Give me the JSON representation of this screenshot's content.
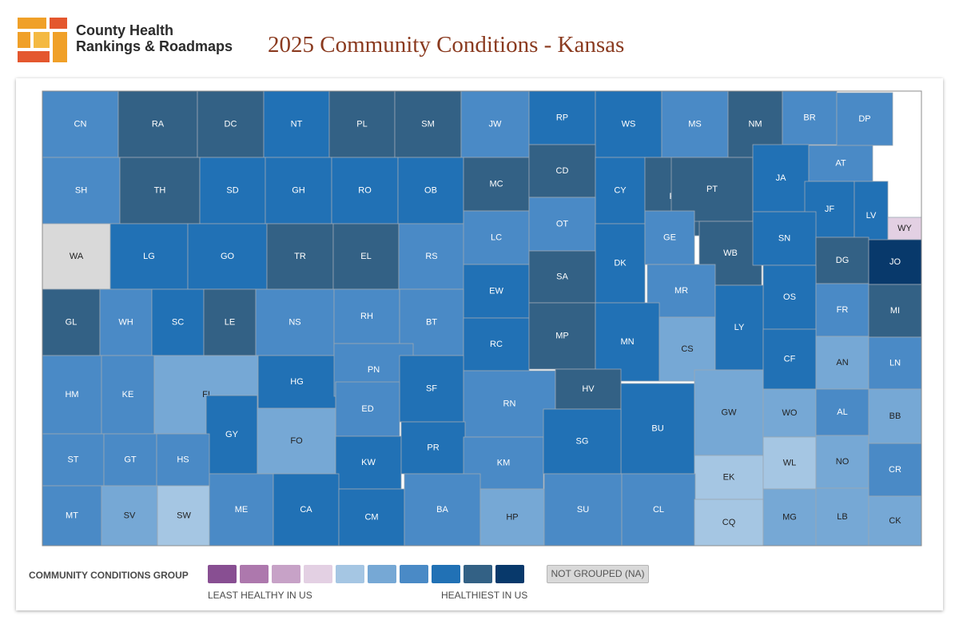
{
  "header": {
    "brand_line1": "County Health",
    "brand_line2": "Rankings & Roadmaps",
    "title": "2025 Community Conditions - Kansas"
  },
  "palette": {
    "na": "#d9d9d9",
    "g1": "#884f92",
    "g2": "#ad78ad",
    "g3": "#c7a2c7",
    "g4": "#e3d0e3",
    "g5": "#a5c6e3",
    "g6": "#76a8d5",
    "g7": "#4a8ac6",
    "g8": "#2171b5",
    "g9": "#336185",
    "g10": "#08396b"
  },
  "legend": {
    "title": "COMMUNITY CONDITIONS GROUP",
    "least_label": "LEAST HEALTHY IN US",
    "healthiest_label": "HEALTHIEST IN US",
    "na_label": "NOT GROUPED (NA)",
    "groups": [
      "g1",
      "g2",
      "g3",
      "g4",
      "g5",
      "g6",
      "g7",
      "g8",
      "g9",
      "g10"
    ]
  },
  "state": "Kansas",
  "counties": [
    {
      "code": "CN",
      "group": "g7"
    },
    {
      "code": "RA",
      "group": "g9"
    },
    {
      "code": "DC",
      "group": "g9"
    },
    {
      "code": "NT",
      "group": "g8"
    },
    {
      "code": "PL",
      "group": "g9"
    },
    {
      "code": "SM",
      "group": "g9"
    },
    {
      "code": "JW",
      "group": "g7"
    },
    {
      "code": "RP",
      "group": "g8"
    },
    {
      "code": "WS",
      "group": "g8"
    },
    {
      "code": "MS",
      "group": "g7"
    },
    {
      "code": "NM",
      "group": "g9"
    },
    {
      "code": "BR",
      "group": "g7"
    },
    {
      "code": "DP",
      "group": "g7"
    },
    {
      "code": "SH",
      "group": "g7"
    },
    {
      "code": "TH",
      "group": "g9"
    },
    {
      "code": "SD",
      "group": "g8"
    },
    {
      "code": "GH",
      "group": "g8"
    },
    {
      "code": "RO",
      "group": "g8"
    },
    {
      "code": "OB",
      "group": "g8"
    },
    {
      "code": "MC",
      "group": "g9"
    },
    {
      "code": "CD",
      "group": "g9"
    },
    {
      "code": "CY",
      "group": "g8"
    },
    {
      "code": "RL",
      "group": "g9"
    },
    {
      "code": "PT",
      "group": "g9"
    },
    {
      "code": "JA",
      "group": "g8"
    },
    {
      "code": "AT",
      "group": "g7"
    },
    {
      "code": "JF",
      "group": "g8"
    },
    {
      "code": "LV",
      "group": "g8"
    },
    {
      "code": "WY",
      "group": "g4"
    },
    {
      "code": "WA",
      "group": "na"
    },
    {
      "code": "LG",
      "group": "g8"
    },
    {
      "code": "GO",
      "group": "g8"
    },
    {
      "code": "TR",
      "group": "g9"
    },
    {
      "code": "EL",
      "group": "g9"
    },
    {
      "code": "RS",
      "group": "g7"
    },
    {
      "code": "LC",
      "group": "g7"
    },
    {
      "code": "OT",
      "group": "g7"
    },
    {
      "code": "DK",
      "group": "g8"
    },
    {
      "code": "GE",
      "group": "g7"
    },
    {
      "code": "WB",
      "group": "g9"
    },
    {
      "code": "SN",
      "group": "g8"
    },
    {
      "code": "DG",
      "group": "g9"
    },
    {
      "code": "JO",
      "group": "g10"
    },
    {
      "code": "EW",
      "group": "g8"
    },
    {
      "code": "SA",
      "group": "g9"
    },
    {
      "code": "MR",
      "group": "g7"
    },
    {
      "code": "OS",
      "group": "g8"
    },
    {
      "code": "GL",
      "group": "g9"
    },
    {
      "code": "WH",
      "group": "g7"
    },
    {
      "code": "SC",
      "group": "g8"
    },
    {
      "code": "LE",
      "group": "g9"
    },
    {
      "code": "NS",
      "group": "g7"
    },
    {
      "code": "RH",
      "group": "g7"
    },
    {
      "code": "BT",
      "group": "g7"
    },
    {
      "code": "RC",
      "group": "g8"
    },
    {
      "code": "MP",
      "group": "g9"
    },
    {
      "code": "MN",
      "group": "g8"
    },
    {
      "code": "CS",
      "group": "g6"
    },
    {
      "code": "LY",
      "group": "g8"
    },
    {
      "code": "FR",
      "group": "g7"
    },
    {
      "code": "MI",
      "group": "g9"
    },
    {
      "code": "HM",
      "group": "g7"
    },
    {
      "code": "KE",
      "group": "g7"
    },
    {
      "code": "FI",
      "group": "g6"
    },
    {
      "code": "HG",
      "group": "g8"
    },
    {
      "code": "PN",
      "group": "g7"
    },
    {
      "code": "SF",
      "group": "g8"
    },
    {
      "code": "RN",
      "group": "g7"
    },
    {
      "code": "HV",
      "group": "g9"
    },
    {
      "code": "CF",
      "group": "g8"
    },
    {
      "code": "AN",
      "group": "g6"
    },
    {
      "code": "LN",
      "group": "g7"
    },
    {
      "code": "GY",
      "group": "g8"
    },
    {
      "code": "ED",
      "group": "g7"
    },
    {
      "code": "BU",
      "group": "g8"
    },
    {
      "code": "GW",
      "group": "g6"
    },
    {
      "code": "WO",
      "group": "g6"
    },
    {
      "code": "AL",
      "group": "g7"
    },
    {
      "code": "BB",
      "group": "g6"
    },
    {
      "code": "ST",
      "group": "g7"
    },
    {
      "code": "GT",
      "group": "g7"
    },
    {
      "code": "HS",
      "group": "g7"
    },
    {
      "code": "FO",
      "group": "g6"
    },
    {
      "code": "KW",
      "group": "g8"
    },
    {
      "code": "PR",
      "group": "g8"
    },
    {
      "code": "KM",
      "group": "g7"
    },
    {
      "code": "SG",
      "group": "g8"
    },
    {
      "code": "EK",
      "group": "g5"
    },
    {
      "code": "WL",
      "group": "g5"
    },
    {
      "code": "NO",
      "group": "g6"
    },
    {
      "code": "CR",
      "group": "g7"
    },
    {
      "code": "MT",
      "group": "g7"
    },
    {
      "code": "SV",
      "group": "g6"
    },
    {
      "code": "SW",
      "group": "g5"
    },
    {
      "code": "ME",
      "group": "g7"
    },
    {
      "code": "CA",
      "group": "g8"
    },
    {
      "code": "CM",
      "group": "g8"
    },
    {
      "code": "BA",
      "group": "g7"
    },
    {
      "code": "HP",
      "group": "g6"
    },
    {
      "code": "SU",
      "group": "g7"
    },
    {
      "code": "CL",
      "group": "g7"
    },
    {
      "code": "CQ",
      "group": "g5"
    },
    {
      "code": "MG",
      "group": "g6"
    },
    {
      "code": "LB",
      "group": "g6"
    },
    {
      "code": "CK",
      "group": "g6"
    }
  ]
}
